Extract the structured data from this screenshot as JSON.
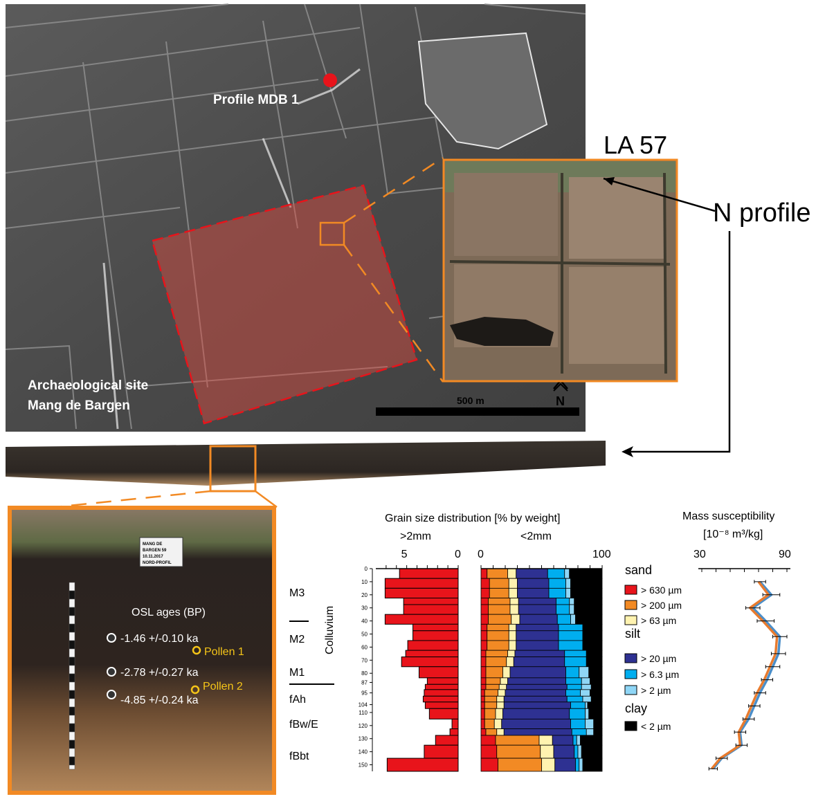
{
  "map": {
    "profile_label": "Profile MDB 1",
    "site_label_line1": "Archaeological site",
    "site_label_line2": "Mang de Bargen",
    "scale_label": "500 m",
    "north_label": "N",
    "inset_title": "LA 57",
    "inset_north_label": "N",
    "callout_label": "N profile"
  },
  "profile_photo": {
    "osl_title": "OSL ages (BP)",
    "osl_ages": [
      "-1.46 +/-0.10 ka",
      "-2.78 +/-0.27 ka",
      "-4.85 +/-0.24 ka"
    ],
    "pollen_labels": [
      "Pollen 1",
      "Pollen 2"
    ],
    "sign_lines": [
      "MANG DE",
      "BARGEN 59",
      "10.11.2017",
      "NORD-PROFIL"
    ]
  },
  "units": {
    "labels": [
      "M3",
      "M2",
      "M1",
      "fAh",
      "fBw/E",
      "fBbt"
    ],
    "group_label": "Colluvium"
  },
  "chart_data": [
    {
      "type": "bar",
      "orientation": "horizontal",
      "title": "Grain size distribution [% by weight]",
      "subtitle": ">2mm",
      "xlim": [
        8,
        0
      ],
      "x_ticks": [
        "5",
        "0"
      ],
      "depths": [
        5,
        10,
        20,
        25,
        30,
        40,
        45,
        50,
        60,
        65,
        70,
        80,
        87,
        90,
        95,
        100,
        104,
        110,
        120,
        125,
        130,
        140,
        150
      ],
      "depth_labels": [
        "0",
        "10",
        "20",
        "30",
        "40",
        "50",
        "60",
        "70",
        "80",
        "87",
        "95",
        "104",
        "110",
        "120",
        "130",
        "140",
        "150"
      ],
      "values": [
        5.7,
        7.1,
        7.1,
        5.3,
        5.3,
        7.1,
        4.4,
        4.4,
        4.9,
        5.1,
        5.5,
        3.8,
        3.0,
        3.2,
        3.3,
        3.4,
        3.2,
        2.8,
        0.6,
        0.8,
        2.2,
        3.3,
        6.9
      ],
      "color": "#e8141b"
    },
    {
      "type": "bar",
      "orientation": "horizontal",
      "stacked": true,
      "subtitle": "<2mm",
      "xlim": [
        0,
        100
      ],
      "x_ticks": [
        "0",
        "100"
      ],
      "depths": [
        5,
        10,
        20,
        25,
        30,
        40,
        45,
        50,
        60,
        65,
        70,
        80,
        87,
        90,
        95,
        100,
        104,
        110,
        120,
        125,
        130,
        140,
        150
      ],
      "series": [
        {
          "name": "> 630 µm",
          "color": "#e8141b",
          "values": [
            5,
            7,
            7,
            6,
            6,
            6,
            5,
            5,
            5,
            4,
            4,
            4,
            4,
            4,
            3,
            3,
            3,
            3,
            3,
            4,
            12,
            13,
            14
          ]
        },
        {
          "name": "> 200 µm",
          "color": "#f28a24",
          "values": [
            17,
            16,
            16,
            18,
            18,
            19,
            18,
            18,
            18,
            18,
            17,
            14,
            12,
            11,
            11,
            10,
            10,
            9,
            8,
            9,
            36,
            36,
            36
          ]
        },
        {
          "name": "> 63 µm",
          "color": "#fff3b0",
          "values": [
            7,
            7,
            7,
            7,
            7,
            7,
            6,
            6,
            6,
            6,
            6,
            6,
            6,
            6,
            6,
            6,
            6,
            6,
            6,
            6,
            11,
            11,
            11
          ]
        },
        {
          "name": "> 20 µm",
          "color": "#2e3192",
          "values": [
            26,
            26,
            26,
            31,
            31,
            31,
            35,
            35,
            35,
            41,
            42,
            46,
            48,
            50,
            50,
            52,
            55,
            55,
            57,
            56,
            17,
            17,
            17
          ]
        },
        {
          "name": "> 6.3 µm",
          "color": "#00aeef",
          "values": [
            14,
            14,
            14,
            11,
            11,
            11,
            20,
            20,
            20,
            18,
            18,
            11,
            13,
            12,
            12,
            13,
            12,
            13,
            12,
            12,
            3,
            3,
            3
          ]
        },
        {
          "name": "> 2 µm",
          "color": "#8fd6f6",
          "values": [
            4,
            4,
            4,
            4,
            4,
            4,
            0,
            0,
            0,
            0,
            0,
            8,
            7,
            8,
            8,
            7,
            2,
            3,
            7,
            6,
            3,
            3,
            3
          ]
        },
        {
          "name": "< 2 µm",
          "color": "#000000",
          "values": [
            27,
            26,
            26,
            23,
            23,
            22,
            16,
            16,
            16,
            13,
            13,
            11,
            10,
            9,
            10,
            9,
            12,
            11,
            7,
            7,
            18,
            17,
            16
          ]
        }
      ],
      "legend": {
        "sand": "sand",
        "silt": "silt",
        "clay": "clay"
      }
    },
    {
      "type": "line",
      "title": "Mass susceptibility",
      "ylabel_units": "[10⁻⁸ m³/kg]",
      "xlim": [
        30,
        90
      ],
      "x_ticks": [
        "30",
        "90"
      ],
      "ylim": [
        0,
        160
      ],
      "series": [
        {
          "name": "",
          "color": "#4a8ec9",
          "x": [
            71,
            79,
            66,
            75,
            85,
            84,
            80,
            76,
            71,
            67,
            63,
            57,
            58,
            44,
            38
          ],
          "y": [
            10,
            20,
            30,
            40,
            52,
            65,
            75,
            85,
            95,
            105,
            115,
            125,
            135,
            145,
            153
          ],
          "err": [
            4,
            6,
            5,
            6,
            5,
            5,
            5,
            4,
            4,
            4,
            4,
            4,
            4,
            4,
            3
          ]
        },
        {
          "name": "",
          "color": "#e87b2e",
          "x": [
            70,
            77,
            64,
            73,
            83,
            82,
            78,
            74,
            69,
            65,
            61,
            56,
            57,
            43,
            37
          ],
          "y": [
            10,
            20,
            30,
            40,
            52,
            65,
            75,
            85,
            95,
            105,
            115,
            125,
            135,
            145,
            153
          ]
        }
      ]
    }
  ]
}
